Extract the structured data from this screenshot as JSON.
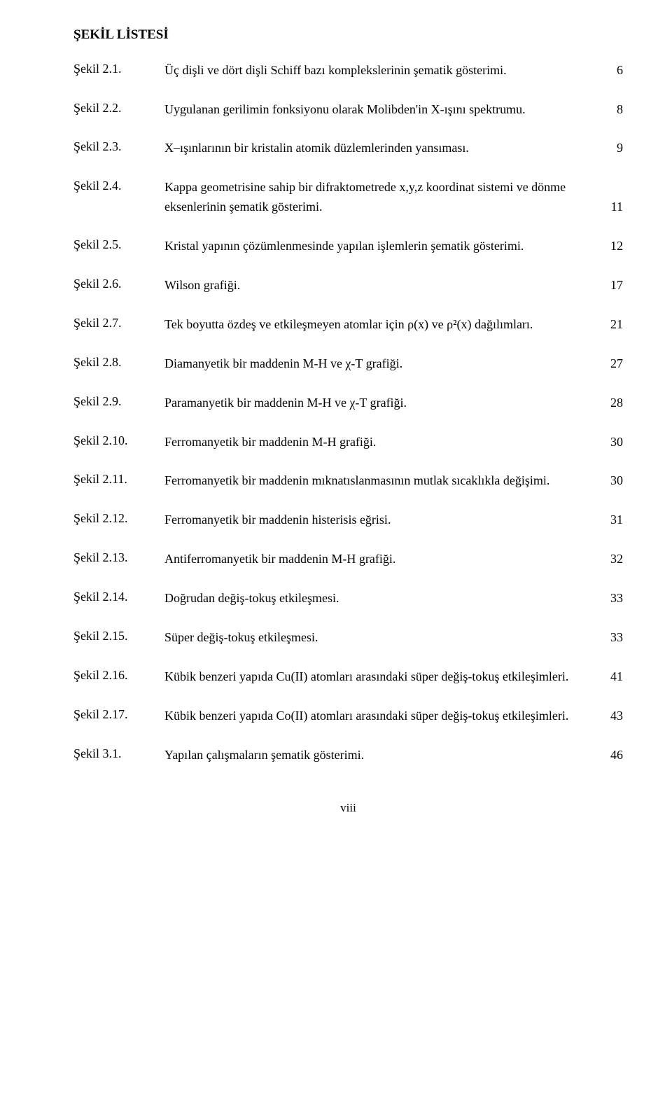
{
  "title": "ŞEKİL LİSTESİ",
  "entries": [
    {
      "label": "Şekil 2.1.",
      "desc": "Üç dişli ve dört dişli Schiff bazı komplekslerinin şematik gösterimi.",
      "page": "6"
    },
    {
      "label": "Şekil 2.2.",
      "desc": "Uygulanan gerilimin fonksiyonu olarak Molibden'in X-ışını spektrumu.",
      "page": "8"
    },
    {
      "label": "Şekil 2.3.",
      "desc": "X–ışınlarının bir kristalin atomik düzlemlerinden yansıması.",
      "page": "9"
    },
    {
      "label": "Şekil 2.4.",
      "desc": "Kappa geometrisine sahip bir difraktometrede x,y,z koordinat sistemi ve dönme eksenlerinin şematik gösterimi.",
      "page": "11"
    },
    {
      "label": "Şekil 2.5.",
      "desc": "Kristal yapının çözümlenmesinde yapılan işlemlerin şematik gösterimi.",
      "page": "12"
    },
    {
      "label": "Şekil 2.6.",
      "desc": "Wilson grafiği.",
      "page": "17"
    },
    {
      "label": "Şekil 2.7.",
      "desc": "Tek boyutta özdeş ve etkileşmeyen atomlar için ρ(x) ve ρ²(x) dağılımları.",
      "page": "21"
    },
    {
      "label": "Şekil 2.8.",
      "desc": "Diamanyetik bir maddenin M-H ve χ-T grafiği.",
      "page": "27"
    },
    {
      "label": "Şekil 2.9.",
      "desc": "Paramanyetik bir maddenin M-H ve χ-T grafiği.",
      "page": "28"
    },
    {
      "label": "Şekil 2.10.",
      "desc": "Ferromanyetik bir maddenin M-H grafiği.",
      "page": "30"
    },
    {
      "label": "Şekil 2.11.",
      "desc": "Ferromanyetik bir maddenin mıknatıslanmasının mutlak sıcaklıkla değişimi.",
      "page": "30"
    },
    {
      "label": "Şekil 2.12.",
      "desc": "Ferromanyetik bir maddenin histerisis eğrisi.",
      "page": "31"
    },
    {
      "label": "Şekil 2.13.",
      "desc": "Antiferromanyetik bir maddenin M-H grafiği.",
      "page": "32"
    },
    {
      "label": "Şekil 2.14.",
      "desc": "Doğrudan değiş-tokuş etkileşmesi.",
      "page": "33"
    },
    {
      "label": "Şekil 2.15.",
      "desc": "Süper değiş-tokuş etkileşmesi.",
      "page": "33"
    },
    {
      "label": "Şekil 2.16.",
      "desc": "Kübik benzeri yapıda Cu(II) atomları arasındaki süper değiş-tokuş etkileşimleri.",
      "page": "41"
    },
    {
      "label": "Şekil 2.17.",
      "desc": "Kübik benzeri yapıda Co(II) atomları arasındaki süper değiş-tokuş etkileşimleri.",
      "page": "43"
    },
    {
      "label": "Şekil 3.1.",
      "desc": "Yapılan çalışmaların şematik gösterimi.",
      "page": "46"
    }
  ],
  "footer": "viii"
}
